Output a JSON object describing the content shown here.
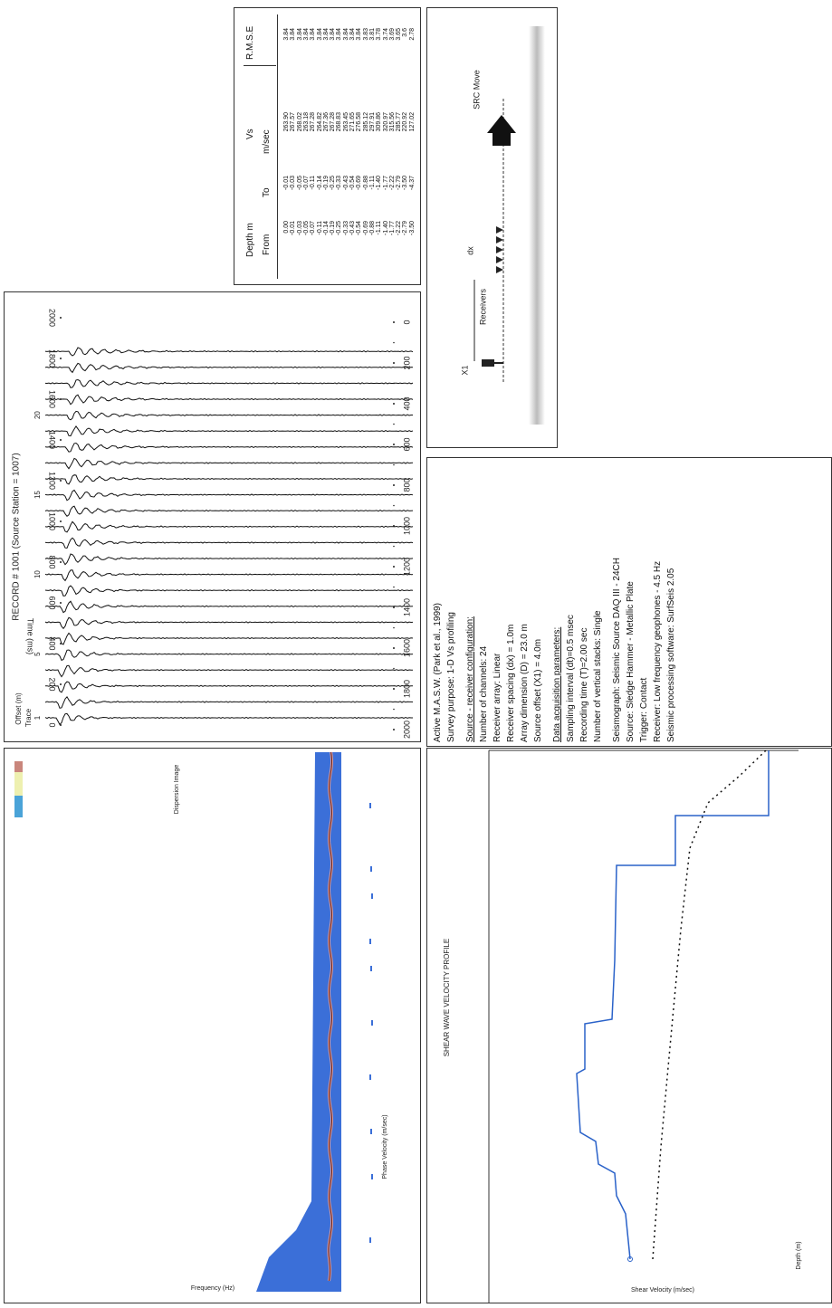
{
  "depth_table": {
    "header": {
      "depth": "Depth m",
      "from": "From",
      "to": "To",
      "vs": "Vs",
      "unit": "m/sec",
      "rmse": "R.M.S.E"
    },
    "rows": [
      [
        "0.00",
        "-0.01",
        "263.90",
        "3.84"
      ],
      [
        "-0.01",
        "-0.03",
        "267.57",
        "3.84"
      ],
      [
        "-0.03",
        "-0.05",
        "268.02",
        "3.84"
      ],
      [
        "-0.05",
        "-0.07",
        "263.18",
        "3.84"
      ],
      [
        "-0.07",
        "-0.11",
        "267.28",
        "3.84"
      ],
      [
        "-0.11",
        "-0.14",
        "264.82",
        "3.84"
      ],
      [
        "-0.14",
        "-0.19",
        "267.36",
        "3.84"
      ],
      [
        "-0.19",
        "-0.25",
        "267.28",
        "3.84"
      ],
      [
        "-0.25",
        "-0.33",
        "268.83",
        "3.84"
      ],
      [
        "-0.33",
        "-0.43",
        "263.45",
        "3.84"
      ],
      [
        "-0.43",
        "-0.54",
        "271.65",
        "3.84"
      ],
      [
        "-0.54",
        "-0.69",
        "276.58",
        "3.84"
      ],
      [
        "-0.69",
        "-0.88",
        "285.12",
        "3.83"
      ],
      [
        "-0.88",
        "-1.11",
        "297.91",
        "3.81"
      ],
      [
        "-1.11",
        "-1.40",
        "309.86",
        "3.78"
      ],
      [
        "-1.40",
        "-1.77",
        "320.97",
        "3.74"
      ],
      [
        "-1.77",
        "-2.22",
        "315.56",
        "3.69"
      ],
      [
        "-2.22",
        "-2.79",
        "285.77",
        "3.65"
      ],
      [
        "-2.79",
        "-3.50",
        "220.92",
        "3.6"
      ],
      [
        "-3.50",
        "-4.37",
        "127.02",
        "2.78"
      ]
    ]
  },
  "shot_record": {
    "title": "RECORD # 1001 (Source Station = 1007)",
    "offset_label": "Offset (m)",
    "trace_label": "Trace",
    "trace_numbers": [
      "1",
      "5",
      "10",
      "15",
      "20"
    ],
    "time_label": "Time (ms)",
    "time_ticks": [
      "0",
      "200",
      "400",
      "600",
      "800",
      "1000",
      "1200",
      "1400",
      "1600",
      "1800",
      "2000"
    ]
  },
  "layout_diagram": {
    "x1": "X1",
    "dx": "dx",
    "receivers": "Receivers",
    "src_move": "SRC Move"
  },
  "parameters": {
    "intro": [
      "Active M.A.S.W. (Park et al., 1999)",
      "Survey purpose: 1-D Vs profiling"
    ],
    "sections": [
      {
        "heading": "Source - receiver configuration:",
        "items": [
          "Number of channels: 24",
          "Receiver array: Linear",
          "Receiver spacing (dx) = 1.0m",
          "Array dimension (D) = 23.0 m",
          "Source offset (X1) = 4.0m"
        ]
      },
      {
        "heading": "Data acquisition parameters:",
        "items": [
          "Sampling interval (dt)=0.5 msec",
          "Recording time (T)=2.00 sec",
          "Number of vertical stacks: Single"
        ]
      },
      {
        "items": [
          "Seismograph: Seismic Source DAQ III - 24CH",
          "Source: Sledge Hammer - Metallic Plate",
          "Trigger: Contact",
          "Receiver: Low frequency geophones - 4.5 Hz",
          "Seismic processing software: SurfSeis 2.05"
        ]
      }
    ]
  },
  "dispersion_image": {
    "title": "Dispersion Image",
    "x_label": "Frequency (Hz)",
    "y_label": "Phase Velocity (m/sec)"
  },
  "vs_profile": {
    "title": "SHEAR WAVE VELOCITY PROFILE",
    "x_label": "Shear Velocity (m/sec)",
    "y_label": "Depth (m)"
  }
}
